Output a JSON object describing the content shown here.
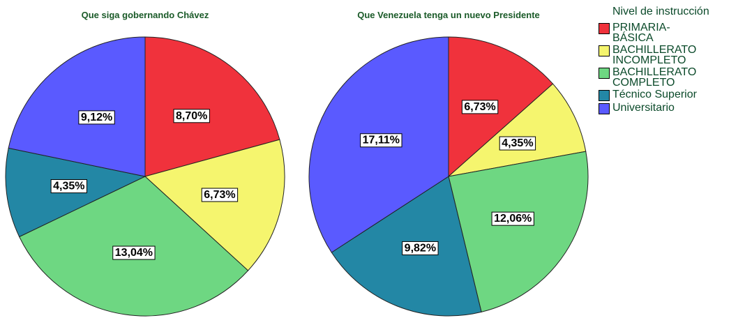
{
  "chart_data": [
    {
      "type": "pie",
      "title": "Que siga gobernando Chávez",
      "legend_title": "Nivel de instrucción",
      "categories": [
        "PRIMARIA- BÁSICA",
        "BACHILLERATO INCOMPLETO",
        "BACHILLERATO COMPLETO",
        "Técnico Superior",
        "Universitario"
      ],
      "colors": [
        "#f0323c",
        "#f5f56e",
        "#6ed782",
        "#2387a5",
        "#5a5aff"
      ],
      "values": [
        8.7,
        6.73,
        13.04,
        4.35,
        9.12
      ],
      "value_labels": [
        "8,70%",
        "6,73%",
        "13,04%",
        "4,35%",
        "9,12%"
      ]
    },
    {
      "type": "pie",
      "title": "Que Venezuela tenga un nuevo Presidente",
      "categories": [
        "PRIMARIA- BÁSICA",
        "BACHILLERATO INCOMPLETO",
        "BACHILLERATO COMPLETO",
        "Técnico Superior",
        "Universitario"
      ],
      "colors": [
        "#f0323c",
        "#f5f56e",
        "#6ed782",
        "#2387a5",
        "#5a5aff"
      ],
      "values": [
        6.73,
        4.35,
        12.06,
        9.82,
        17.11
      ],
      "value_labels": [
        "6,73%",
        "4,35%",
        "12,06%",
        "9,82%",
        "17,11%"
      ]
    }
  ]
}
